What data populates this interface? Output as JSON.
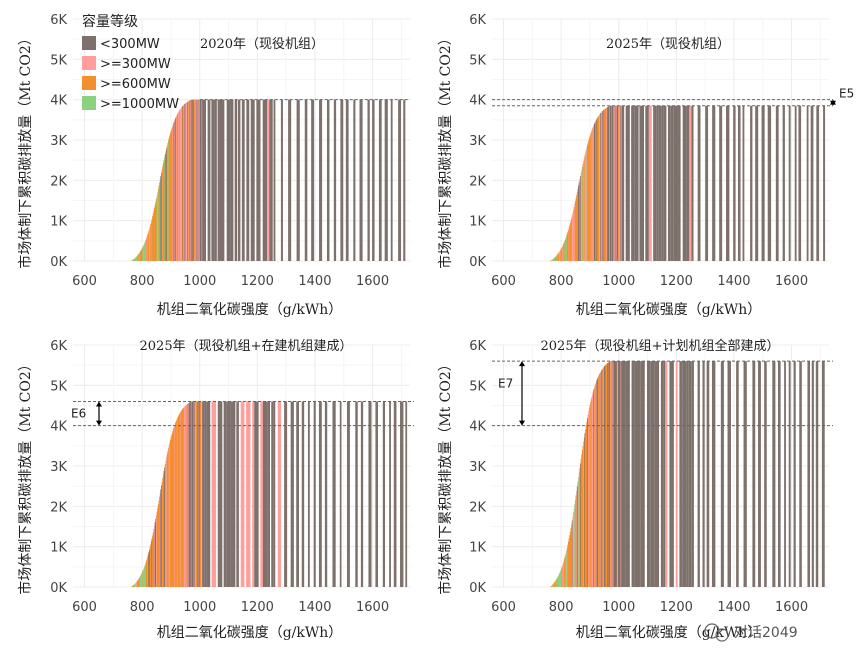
{
  "legend": {
    "title": "容量等级",
    "items": [
      {
        "label": "<300MW",
        "color": "#7e716c"
      },
      {
        "label": ">=300MW",
        "color": "#ff9e9a"
      },
      {
        "label": ">=600MW",
        "color": "#f48f2e"
      },
      {
        "label": ">=1000MW",
        "color": "#8cd17d"
      }
    ]
  },
  "watermark": "对话2049",
  "chart_data": [
    {
      "type": "area",
      "title": "2020年（现役机组）",
      "xlabel": "机组二氧化碳强度（g/kWh）",
      "ylabel": "市场体制下累积碳排放量（Mt CO2）",
      "x_ticks": [
        600,
        800,
        1000,
        1200,
        1400,
        1600
      ],
      "y_ticks": [
        "0K",
        "1K",
        "2K",
        "3K",
        "4K",
        "5K",
        "6K"
      ],
      "xlim": [
        560,
        1730
      ],
      "ylim": [
        0,
        6000
      ],
      "x_start": 760,
      "dense_end": 1010,
      "x_max": 1720,
      "y_total": 4000,
      "reference": 4000,
      "annotation": ""
    },
    {
      "type": "area",
      "title": "2025年（现役机组）",
      "xlabel": "机组二氧化碳强度（g/kWh）",
      "ylabel": "市场体制下累积碳排放量（Mt CO2）",
      "x_ticks": [
        600,
        800,
        1000,
        1200,
        1400,
        1600
      ],
      "y_ticks": [
        "0K",
        "1K",
        "2K",
        "3K",
        "4K",
        "5K",
        "6K"
      ],
      "xlim": [
        560,
        1730
      ],
      "ylim": [
        0,
        6000
      ],
      "x_start": 760,
      "dense_end": 1010,
      "x_max": 1720,
      "y_total": 3850,
      "reference": 4000,
      "annotation": "E5"
    },
    {
      "type": "area",
      "title": "2025年（现役机组+在建机组建成）",
      "xlabel": "机组二氧化碳强度（g/kWh）",
      "ylabel": "市场体制下累积碳排放量（Mt CO2）",
      "x_ticks": [
        600,
        800,
        1000,
        1200,
        1400,
        1600
      ],
      "y_ticks": [
        "0K",
        "1K",
        "2K",
        "3K",
        "4K",
        "5K",
        "6K"
      ],
      "xlim": [
        560,
        1730
      ],
      "ylim": [
        0,
        6000
      ],
      "x_start": 760,
      "dense_end": 1010,
      "x_max": 1720,
      "y_total": 4600,
      "reference": 4000,
      "annotation": "E6"
    },
    {
      "type": "area",
      "title": "2025年（现役机组+计划机组全部建成）",
      "xlabel": "机组二氧化碳强度（g/kWh）",
      "ylabel": "市场体制下累积碳排放量（Mt CO2）",
      "x_ticks": [
        600,
        800,
        1000,
        1200,
        1400,
        1600
      ],
      "y_ticks": [
        "0K",
        "1K",
        "2K",
        "3K",
        "4K",
        "5K",
        "6K"
      ],
      "xlim": [
        560,
        1730
      ],
      "ylim": [
        0,
        6000
      ],
      "x_start": 760,
      "dense_end": 1010,
      "x_max": 1720,
      "y_total": 5600,
      "reference": 4000,
      "annotation": "E7"
    }
  ]
}
